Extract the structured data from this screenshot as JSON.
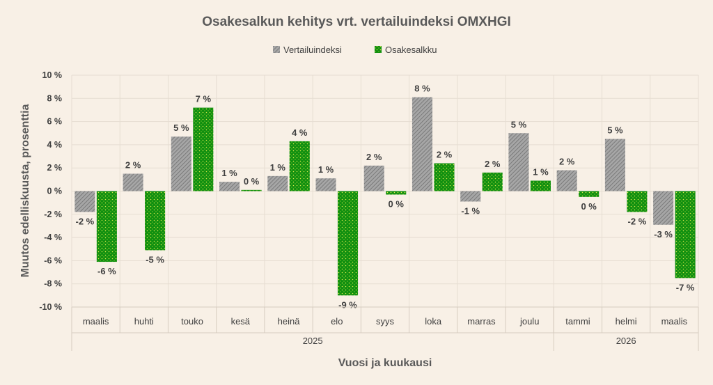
{
  "chart_data": {
    "type": "bar",
    "title": "Osakesalkun kehitys vrt. vertailuindeksi OMXHGI",
    "xlabel": "Vuosi ja kuukausi",
    "ylabel": "Muutos edelliskuusta, prosenttia",
    "ylim": [
      -10,
      10
    ],
    "yticks": [
      10,
      8,
      6,
      4,
      2,
      0,
      -2,
      -4,
      -6,
      -8,
      -10
    ],
    "ytick_labels": [
      "10 %",
      "8 %",
      "6 %",
      "4 %",
      "2 %",
      "0 %",
      "-2 %",
      "-4 %",
      "-6 %",
      "-8 %",
      "-10 %"
    ],
    "categories": [
      "maalis",
      "huhti",
      "touko",
      "kesä",
      "heinä",
      "elo",
      "syys",
      "loka",
      "marras",
      "joulu",
      "tammi",
      "helmi",
      "maalis"
    ],
    "years": [
      {
        "label": "2025",
        "count": 10
      },
      {
        "label": "2026",
        "count": 3
      }
    ],
    "legend_position": "top-center",
    "series": [
      {
        "name": "Vertailuindeksi",
        "color": "#8c8c8c",
        "values": [
          -1.8,
          1.5,
          4.7,
          0.8,
          1.3,
          1.1,
          2.2,
          8.1,
          -0.9,
          5.0,
          1.8,
          4.5,
          -2.9
        ],
        "labels": [
          "-2 %",
          "2 %",
          "5 %",
          "1 %",
          "1 %",
          "1 %",
          "2 %",
          "8 %",
          "-1 %",
          "5 %",
          "2 %",
          "5 %",
          "-3 %"
        ]
      },
      {
        "name": "Osakesalkku",
        "color": "#1a9e1a",
        "values": [
          -6.1,
          -5.1,
          7.2,
          0.1,
          4.3,
          -9.0,
          -0.3,
          2.4,
          1.6,
          0.9,
          -0.5,
          -1.8,
          -7.5
        ],
        "labels": [
          "-6 %",
          "-5 %",
          "7 %",
          "0 %",
          "4 %",
          "-9 %",
          "0 %",
          "2 %",
          "2 %",
          "1 %",
          "0 %",
          "-2 %",
          "-7 %"
        ]
      }
    ]
  }
}
